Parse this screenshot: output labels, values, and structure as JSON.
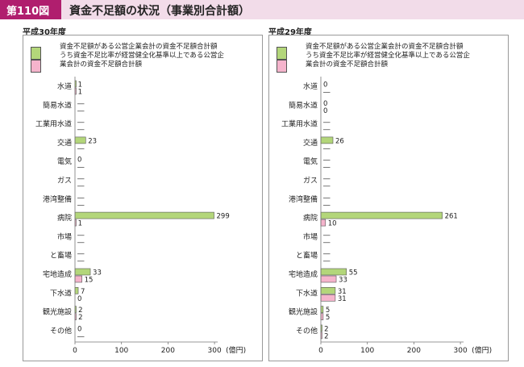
{
  "figure": {
    "number": "第110図",
    "title": "資金不足額の状況（事業別合計額）"
  },
  "legend": {
    "series1": "資金不足額がある公営企業会計の資金不足額合計額",
    "series2_line1": "うち資金不足比率が経営健全化基準以上である公営企",
    "series2_line2": "業会計の資金不足額合計額"
  },
  "colors": {
    "series1": "#b3d67a",
    "series2": "#f5b4cc",
    "stroke": "#555555"
  },
  "chart_data": [
    {
      "type": "bar",
      "orientation": "horizontal",
      "title": "平成30年度",
      "categories": [
        "水道",
        "簡易水道",
        "工業用水道",
        "交通",
        "電気",
        "ガス",
        "港湾整備",
        "病院",
        "市場",
        "と畜場",
        "宅地造成",
        "下水道",
        "観光施設",
        "その他"
      ],
      "series": [
        {
          "name": "資金不足額がある公営企業会計の資金不足額合計額",
          "values": [
            1,
            null,
            null,
            23,
            0,
            null,
            null,
            299,
            null,
            null,
            33,
            7,
            2,
            0
          ]
        },
        {
          "name": "うち資金不足比率が経営健全化基準以上である公営企業会計の資金不足額合計額",
          "values": [
            1,
            null,
            null,
            null,
            null,
            null,
            null,
            1,
            null,
            null,
            15,
            0,
            2,
            null
          ]
        }
      ],
      "labels": [
        [
          "1",
          "―",
          "―",
          "23",
          "0",
          "―",
          "―",
          "299",
          "―",
          "―",
          "33",
          "7",
          "2",
          "0"
        ],
        [
          "1",
          "―",
          "―",
          "―",
          "―",
          "―",
          "―",
          "1",
          "―",
          "―",
          "15",
          "0",
          "2",
          "―"
        ]
      ],
      "xlim": [
        0,
        300
      ],
      "xticks": [
        "0",
        "100",
        "200",
        "300"
      ],
      "unit": "(億円)"
    },
    {
      "type": "bar",
      "orientation": "horizontal",
      "title": "平成29年度",
      "categories": [
        "水道",
        "簡易水道",
        "工業用水道",
        "交通",
        "電気",
        "ガス",
        "港湾整備",
        "病院",
        "市場",
        "と畜場",
        "宅地造成",
        "下水道",
        "観光施設",
        "その他"
      ],
      "series": [
        {
          "name": "資金不足額がある公営企業会計の資金不足額合計額",
          "values": [
            0,
            0,
            null,
            26,
            null,
            null,
            null,
            261,
            null,
            null,
            55,
            31,
            5,
            2
          ]
        },
        {
          "name": "うち資金不足比率が経営健全化基準以上である公営企業会計の資金不足額合計額",
          "values": [
            null,
            0,
            null,
            null,
            null,
            null,
            null,
            10,
            null,
            null,
            33,
            31,
            5,
            2
          ]
        }
      ],
      "labels": [
        [
          "0",
          "0",
          "―",
          "26",
          "―",
          "―",
          "―",
          "261",
          "―",
          "―",
          "55",
          "31",
          "5",
          "2"
        ],
        [
          "―",
          "0",
          "―",
          "―",
          "―",
          "―",
          "―",
          "10",
          "―",
          "―",
          "33",
          "31",
          "5",
          "2"
        ]
      ],
      "xlim": [
        0,
        300
      ],
      "xticks": [
        "0",
        "100",
        "200",
        "300"
      ],
      "unit": "(億円)"
    }
  ]
}
